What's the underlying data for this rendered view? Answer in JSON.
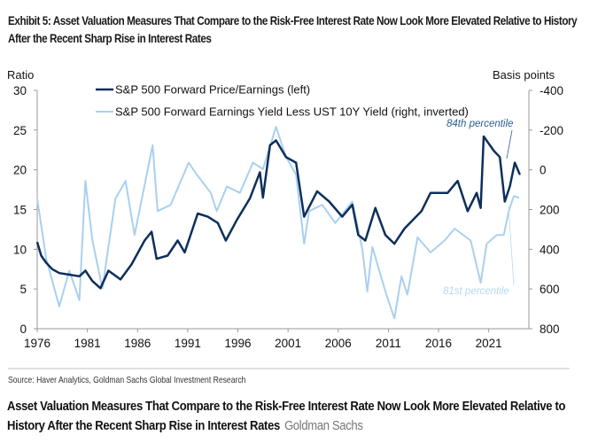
{
  "exhibit_title": "Exhibit 5: Asset Valuation Measures That Compare to the Risk-Free Interest Rate Now Look More Elevated Relative to History After the Recent Sharp Rise in Interest Rates",
  "source": "Source: Haver Analytics, Goldman Sachs Global Investment Research",
  "caption": {
    "text": "Asset Valuation Measures That Compare to the Risk-Free Interest Rate Now Look More Elevated Relative to History After the Recent Sharp Rise in Interest Rates",
    "credit": "Goldman Sachs"
  },
  "chart_data": {
    "type": "line",
    "title": "",
    "xlabel": "",
    "ylabel_left": "Ratio",
    "ylabel_right": "Basis points",
    "xlim": [
      1976,
      2025
    ],
    "ylim_left": [
      0,
      30
    ],
    "ylim_right": [
      -400,
      800
    ],
    "right_axis_inverted": true,
    "x_ticks": [
      "1976",
      "1981",
      "1986",
      "1991",
      "1996",
      "2001",
      "2006",
      "2011",
      "2016",
      "2021"
    ],
    "y_ticks_left": [
      "0",
      "5",
      "10",
      "15",
      "20",
      "25",
      "30"
    ],
    "y_ticks_right": [
      "-400",
      "-200",
      "0",
      "200",
      "400",
      "600",
      "800"
    ],
    "grid": false,
    "legend_position": "top-left",
    "colors": {
      "pe": "#0d2f5c",
      "yield_gap": "#a9d0f0",
      "axis": "#9a9a9a"
    },
    "annotations": [
      {
        "text": "84th percentile",
        "series": "pe",
        "placement": "top-right"
      },
      {
        "text": "81st percentile",
        "series": "yield_gap",
        "placement": "bottom-right"
      }
    ],
    "series": [
      {
        "name": "S&P 500 Forward Price/Earnings (left)",
        "axis": "left",
        "x": [
          1976.0,
          1976.4,
          1976.9,
          1977.5,
          1978.2,
          1979.2,
          1980.2,
          1980.8,
          1981.5,
          1982.3,
          1983.1,
          1984.3,
          1985.4,
          1986.7,
          1987.4,
          1987.9,
          1989.0,
          1990.0,
          1990.7,
          1992.0,
          1993.0,
          1994.0,
          1994.8,
          1995.9,
          1997.2,
          1998.2,
          1998.5,
          1999.2,
          1999.8,
          2000.8,
          2001.8,
          2002.6,
          2003.9,
          2005.1,
          2006.4,
          2007.4,
          2008.0,
          2008.7,
          2009.7,
          2010.7,
          2011.6,
          2012.6,
          2014.3,
          2015.2,
          2016.9,
          2017.9,
          2018.9,
          2019.8,
          2020.2,
          2020.5,
          2021.5,
          2022.1,
          2022.6,
          2023.1,
          2023.6,
          2024.1
        ],
        "values": [
          10.9,
          9.2,
          8.3,
          7.5,
          7.0,
          6.8,
          6.6,
          7.3,
          6.0,
          5.1,
          7.3,
          6.2,
          8.1,
          11.1,
          12.2,
          8.8,
          9.2,
          11.1,
          9.6,
          14.5,
          14.1,
          13.3,
          11.1,
          13.7,
          16.4,
          19.7,
          16.5,
          23.1,
          23.7,
          21.6,
          20.9,
          14.1,
          17.3,
          16.0,
          14.1,
          15.6,
          11.8,
          11.1,
          15.2,
          11.8,
          10.7,
          12.6,
          14.8,
          17.1,
          17.1,
          18.6,
          14.8,
          17.1,
          15.2,
          24.2,
          22.4,
          21.6,
          16.0,
          17.9,
          20.9,
          19.4
        ]
      },
      {
        "name": "S&P 500 Forward Earnings Yield Less UST 10Y Yield (right, inverted)",
        "axis": "right",
        "x": [
          1976.0,
          1976.9,
          1978.2,
          1979.2,
          1980.2,
          1980.8,
          1981.5,
          1982.5,
          1983.8,
          1984.8,
          1985.7,
          1987.5,
          1988.0,
          1989.3,
          1991.1,
          1991.9,
          1993.3,
          1993.9,
          1994.9,
          1996.2,
          1997.5,
          1998.5,
          1999.8,
          2000.8,
          2001.8,
          2002.6,
          2003.1,
          2004.4,
          2005.7,
          2007.4,
          2008.4,
          2008.9,
          2009.4,
          2010.7,
          2011.6,
          2012.3,
          2012.9,
          2013.9,
          2015.2,
          2016.6,
          2017.6,
          2019.2,
          2020.2,
          2020.8,
          2021.8,
          2022.5,
          2023.0,
          2023.5,
          2024.0
        ],
        "values": [
          146,
          448,
          688,
          508,
          656,
          56,
          356,
          596,
          146,
          56,
          328,
          -124,
          208,
          176,
          -36,
          24,
          116,
          208,
          84,
          116,
          -36,
          -4,
          -216,
          -64,
          24,
          372,
          208,
          176,
          268,
          160,
          400,
          612,
          388,
          612,
          748,
          536,
          628,
          340,
          416,
          356,
          296,
          356,
          568,
          372,
          328,
          328,
          208,
          132,
          140
        ]
      }
    ]
  }
}
